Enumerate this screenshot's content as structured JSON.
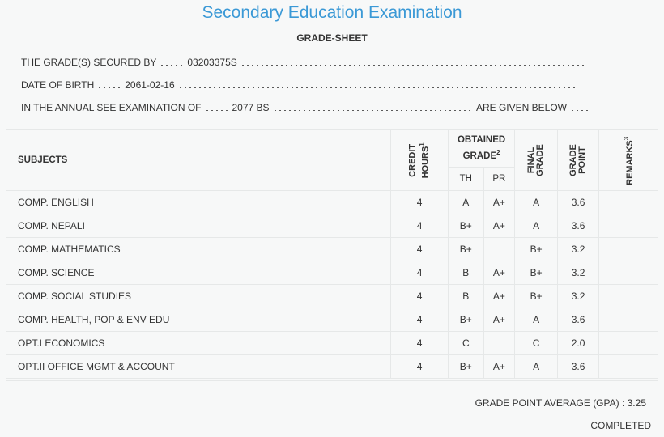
{
  "header": {
    "title": "Secondary Education Examination",
    "subtitle": "GRADE-SHEET"
  },
  "info": [
    {
      "label": "THE GRADE(S) SECURED BY",
      "value": "03203375S"
    },
    {
      "label": "DATE OF BIRTH",
      "value": "2061-02-16"
    },
    {
      "label": "IN THE ANNUAL SEE EXAMINATION OF",
      "value": "2077 BS",
      "suffix": "ARE GIVEN BELOW"
    }
  ],
  "table": {
    "headers": {
      "subjects": "SUBJECTS",
      "credit_hours": "CREDIT HOURS",
      "credit_note": "1",
      "obtained_grade": "OBTAINED GRADE",
      "obtained_note": "2",
      "th": "TH",
      "pr": "PR",
      "final_grade": "FINAL GRADE",
      "grade_point": "GRADE POINT",
      "remarks": "REMARKS",
      "remarks_note": "3"
    },
    "rows": [
      [
        "COMP. ENGLISH",
        "4",
        "A",
        "A+",
        "A",
        "3.6"
      ],
      [
        "COMP. NEPALI",
        "4",
        "B+",
        "A+",
        "A",
        "3.6"
      ],
      [
        "COMP. MATHEMATICS",
        "4",
        "B+",
        null,
        "B+",
        "3.2"
      ],
      [
        "COMP. SCIENCE",
        "4",
        "B",
        "A+",
        "B+",
        "3.2"
      ],
      [
        "COMP. SOCIAL STUDIES",
        "4",
        "B",
        "A+",
        "B+",
        "3.2"
      ],
      [
        "COMP. HEALTH, POP & ENV EDU",
        "4",
        "B+",
        "A+",
        "A",
        "3.6"
      ],
      [
        "OPT.I ECONOMICS",
        "4",
        "C",
        null,
        "C",
        "2.0"
      ],
      [
        "OPT.II OFFICE MGMT & ACCOUNT",
        "4",
        "B+",
        "A+",
        "A",
        "3.6"
      ]
    ]
  },
  "footer": {
    "gpa": "GRADE POINT AVERAGE (GPA) : 3.25",
    "status": "COMPLETED"
  }
}
